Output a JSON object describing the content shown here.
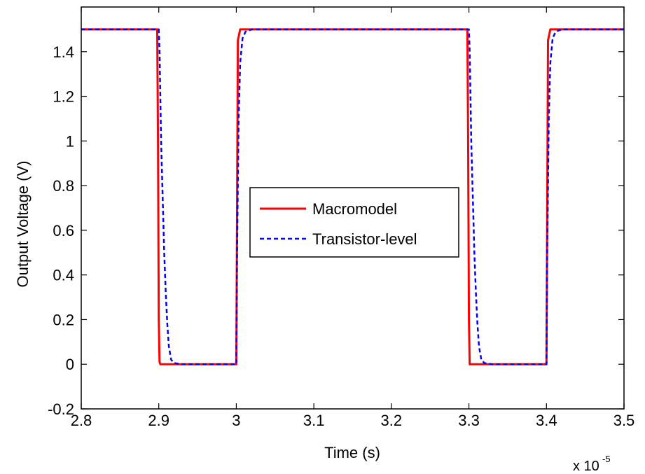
{
  "chart_data": {
    "type": "line",
    "xlabel": "Time (s)",
    "ylabel": "Output Voltage (V)",
    "x_multiplier_label": "x 10",
    "x_multiplier_exponent": "-5",
    "xlim": [
      2.8,
      3.5
    ],
    "ylim": [
      -0.2,
      1.6
    ],
    "x_ticks": [
      "2.8",
      "2.9",
      "3",
      "3.1",
      "3.2",
      "3.3",
      "3.4",
      "3.5"
    ],
    "y_ticks": [
      "-0.2",
      "0",
      "0.2",
      "0.4",
      "0.6",
      "0.8",
      "1",
      "1.2",
      "1.4"
    ],
    "x_tick_values": [
      2.8,
      2.9,
      3.0,
      3.1,
      3.2,
      3.3,
      3.4,
      3.5
    ],
    "y_tick_values": [
      -0.2,
      0,
      0.2,
      0.4,
      0.6,
      0.8,
      1.0,
      1.2,
      1.4
    ],
    "grid": false,
    "legend_position": "center",
    "series": [
      {
        "name": "Macromodel",
        "color": "#ff0000",
        "style": "solid",
        "x": [
          2.8,
          2.898,
          2.899,
          2.9,
          2.901,
          2.902,
          2.91,
          3.0,
          3.001,
          3.002,
          3.005,
          3.02,
          3.298,
          3.299,
          3.3,
          3.301,
          3.31,
          3.4,
          3.401,
          3.402,
          3.405,
          3.42,
          3.5
        ],
        "y": [
          1.5,
          1.5,
          1.0,
          0.2,
          0.01,
          0.0,
          0.0,
          0.0,
          0.7,
          1.45,
          1.5,
          1.5,
          1.5,
          1.0,
          0.2,
          0.0,
          0.0,
          0.0,
          0.7,
          1.45,
          1.5,
          1.5,
          1.5
        ]
      },
      {
        "name": "Transistor-level",
        "color": "#0000ff",
        "style": "dashed",
        "x": [
          2.8,
          2.9,
          2.901,
          2.903,
          2.905,
          2.907,
          2.909,
          2.911,
          2.913,
          2.916,
          2.92,
          2.93,
          3.0,
          3.001,
          3.003,
          3.005,
          3.008,
          3.012,
          3.02,
          3.3,
          3.301,
          3.303,
          3.305,
          3.307,
          3.309,
          3.311,
          3.313,
          3.316,
          3.32,
          3.33,
          3.4,
          3.401,
          3.403,
          3.405,
          3.408,
          3.412,
          3.42,
          3.5
        ],
        "y": [
          1.5,
          1.5,
          1.4,
          1.0,
          0.75,
          0.5,
          0.32,
          0.18,
          0.08,
          0.02,
          0.005,
          0.0,
          0.0,
          0.5,
          1.1,
          1.35,
          1.46,
          1.49,
          1.5,
          1.5,
          1.4,
          1.0,
          0.75,
          0.5,
          0.32,
          0.18,
          0.08,
          0.02,
          0.005,
          0.0,
          0.0,
          0.5,
          1.1,
          1.35,
          1.46,
          1.49,
          1.5,
          1.5
        ]
      }
    ]
  }
}
